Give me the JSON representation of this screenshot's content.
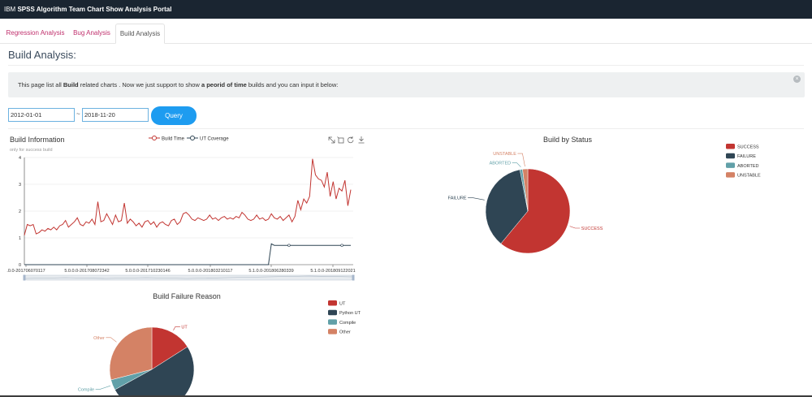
{
  "header": {
    "brand": "IBM",
    "title": "SPSS Algorithm Team Chart Show Analysis Portal"
  },
  "tabs": [
    {
      "label": "Regression Analysis"
    },
    {
      "label": "Bug Analysis"
    },
    {
      "label": "Build Analysis"
    }
  ],
  "page": {
    "title": "Build Analysis:"
  },
  "info": {
    "part1": "This page list all ",
    "bold1": "Build",
    "part2": " related charts . Now we just support to show ",
    "bold2": "a peorid of time",
    "part3": " builds and you can input it below:",
    "close": "×"
  },
  "query": {
    "start": "2012-01-01",
    "separator": "~",
    "end": "2018-11-20",
    "button": "Query"
  },
  "icons": [
    "zoom-icon",
    "zoom-reset-icon",
    "refresh-icon",
    "download-icon"
  ],
  "chart_data": [
    {
      "type": "line",
      "title": "Build Information",
      "subtitle": "only for success build",
      "legend": [
        "Build Time",
        "UT Coverage"
      ],
      "ylim": [
        0,
        4
      ],
      "yticks": [
        "0",
        "1",
        "2",
        "3",
        "4"
      ],
      "xticks": [
        ".0.0-201706070117",
        "5.0.0.0-201708072342",
        "5.0.0.0-201710230146",
        "5.0.0.0-201803210117",
        "5.1.0.0-201806280339",
        "5.1.0.0-201809122021"
      ],
      "series": [
        {
          "name": "Build Time",
          "color": "#c23531",
          "values": [
            1.1,
            1.5,
            1.45,
            1.5,
            1.15,
            1.2,
            1.3,
            1.25,
            1.35,
            1.3,
            1.4,
            1.3,
            1.45,
            1.5,
            1.65,
            1.4,
            1.5,
            1.6,
            1.75,
            1.5,
            1.45,
            1.6,
            1.55,
            1.7,
            1.5,
            2.35,
            1.6,
            1.65,
            1.9,
            1.7,
            1.5,
            1.85,
            1.6,
            1.65,
            2.3,
            1.55,
            1.7,
            1.6,
            1.45,
            1.55,
            1.4,
            1.6,
            1.65,
            1.5,
            1.6,
            1.4,
            1.55,
            1.6,
            1.5,
            1.45,
            1.65,
            1.7,
            1.5,
            1.6,
            1.9,
            1.95,
            1.85,
            1.7,
            1.65,
            1.75,
            1.7,
            1.65,
            1.7,
            1.85,
            1.7,
            1.75,
            1.65,
            1.75,
            1.8,
            1.7,
            1.75,
            1.7,
            1.8,
            1.75,
            1.95,
            1.85,
            1.7,
            1.65,
            1.7,
            1.85,
            1.7,
            1.75,
            1.65,
            1.7,
            1.9,
            1.75,
            1.7,
            1.8,
            1.65,
            1.75,
            1.85,
            1.6,
            1.8,
            2.4,
            2.05,
            2.45,
            2.3,
            2.55,
            3.95,
            3.35,
            3.2,
            3.15,
            2.9,
            3.45,
            2.55,
            3.1,
            2.45,
            2.85,
            2.75,
            3.15,
            2.2,
            2.8
          ]
        },
        {
          "name": "UT Coverage",
          "color": "#2f4554",
          "values": [
            0,
            0,
            0,
            0,
            0,
            0,
            0,
            0,
            0,
            0,
            0,
            0,
            0,
            0,
            0,
            0,
            0,
            0,
            0,
            0,
            0,
            0,
            0,
            0,
            0,
            0,
            0,
            0,
            0,
            0,
            0,
            0,
            0,
            0,
            0,
            0,
            0,
            0,
            0,
            0,
            0,
            0,
            0,
            0,
            0,
            0,
            0,
            0,
            0,
            0,
            0,
            0,
            0,
            0,
            0,
            0,
            0,
            0,
            0,
            0,
            0,
            0,
            0,
            0,
            0,
            0,
            0,
            0,
            0,
            0,
            0,
            0,
            0,
            0,
            0,
            0,
            0,
            0,
            0,
            0,
            0,
            0,
            0,
            0,
            0.78,
            0.72,
            0.72,
            0.72,
            0.72,
            0.72,
            0.72,
            0.72,
            0.72,
            0.72,
            0.72,
            0.72,
            0.72,
            0.72,
            0.72,
            0.72,
            0.72,
            0.72,
            0.72,
            0.72,
            0.72,
            0.72,
            0.72,
            0.72,
            0.72,
            0.72,
            0.72,
            0.72
          ]
        }
      ]
    },
    {
      "type": "pie",
      "title": "Build by Status",
      "slices": [
        {
          "name": "SUCCESS",
          "value": 61,
          "color": "#c23531"
        },
        {
          "name": "FAILURE",
          "value": 36,
          "color": "#2f4554"
        },
        {
          "name": "ABORTED",
          "value": 1,
          "color": "#61a0a8"
        },
        {
          "name": "UNSTABLE",
          "value": 2,
          "color": "#d48265"
        }
      ]
    },
    {
      "type": "pie",
      "title": "Build Failure Reason",
      "slices": [
        {
          "name": "UT",
          "value": 16,
          "color": "#c23531"
        },
        {
          "name": "Python UT",
          "value": 51,
          "color": "#2f4554"
        },
        {
          "name": "Compile",
          "value": 4,
          "color": "#61a0a8"
        },
        {
          "name": "Other",
          "value": 29,
          "color": "#d48265"
        }
      ]
    }
  ]
}
